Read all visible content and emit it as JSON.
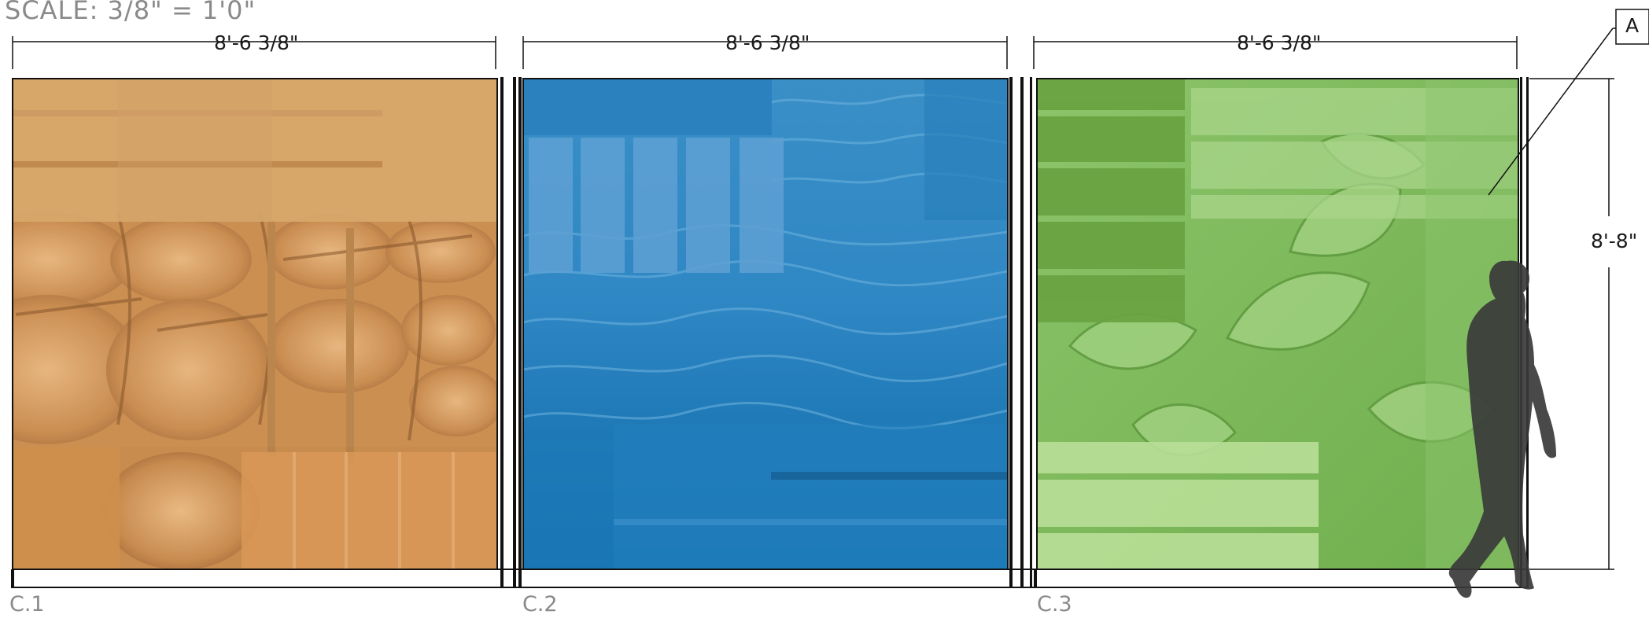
{
  "drawing": {
    "scale_label": "SCALE: 3/8\" = 1'0\"",
    "height_dimension": "8'-8\"",
    "callout_letter": "A"
  },
  "panels": [
    {
      "id": "C.1",
      "label": "C.1",
      "width_dimension": "8'-6 3/8\"",
      "theme": "barrels",
      "color": "#d39a58"
    },
    {
      "id": "C.2",
      "label": "C.2",
      "width_dimension": "8'-6 3/8\"",
      "theme": "water",
      "color": "#1e7fb8"
    },
    {
      "id": "C.3",
      "label": "C.3",
      "width_dimension": "8'-6 3/8\"",
      "theme": "leaves",
      "color": "#7cb45a"
    }
  ],
  "figure": {
    "type": "human-silhouette-scale-figure",
    "color": "#3a3a3a"
  }
}
